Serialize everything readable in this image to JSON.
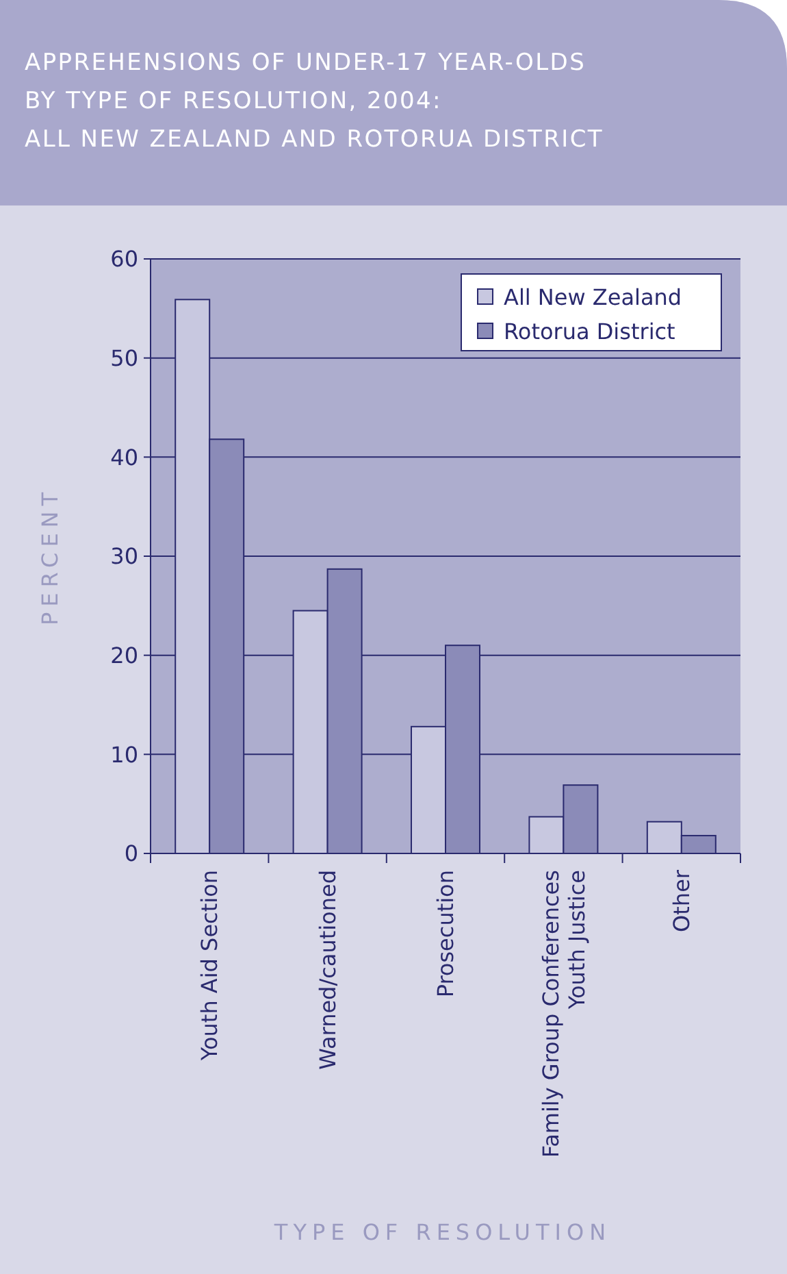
{
  "chart_data": {
    "type": "bar",
    "title": "APPREHENSIONS OF UNDER-17 YEAR-OLDS\nBY TYPE OF RESOLUTION, 2004:\nALL NEW ZEALAND AND ROTORUA DISTRICT",
    "xlabel": "TYPE OF RESOLUTION",
    "ylabel": "PERCENT",
    "categories": [
      "Youth Aid Section",
      "Warned/cautioned",
      "Prosecution",
      "Family Group Conferences\nYouth Justice",
      "Other"
    ],
    "series": [
      {
        "name": "All New Zealand",
        "color": "#c8c8e0",
        "values": [
          55.9,
          24.5,
          12.8,
          3.7,
          3.2
        ]
      },
      {
        "name": "Rotorua District",
        "color": "#8b8bb8",
        "values": [
          41.8,
          28.7,
          21.0,
          6.9,
          1.8
        ]
      }
    ],
    "ylim": [
      0,
      60
    ],
    "yticks": [
      0,
      10,
      20,
      30,
      40,
      50,
      60
    ],
    "grid": "y",
    "legend": "top right"
  }
}
